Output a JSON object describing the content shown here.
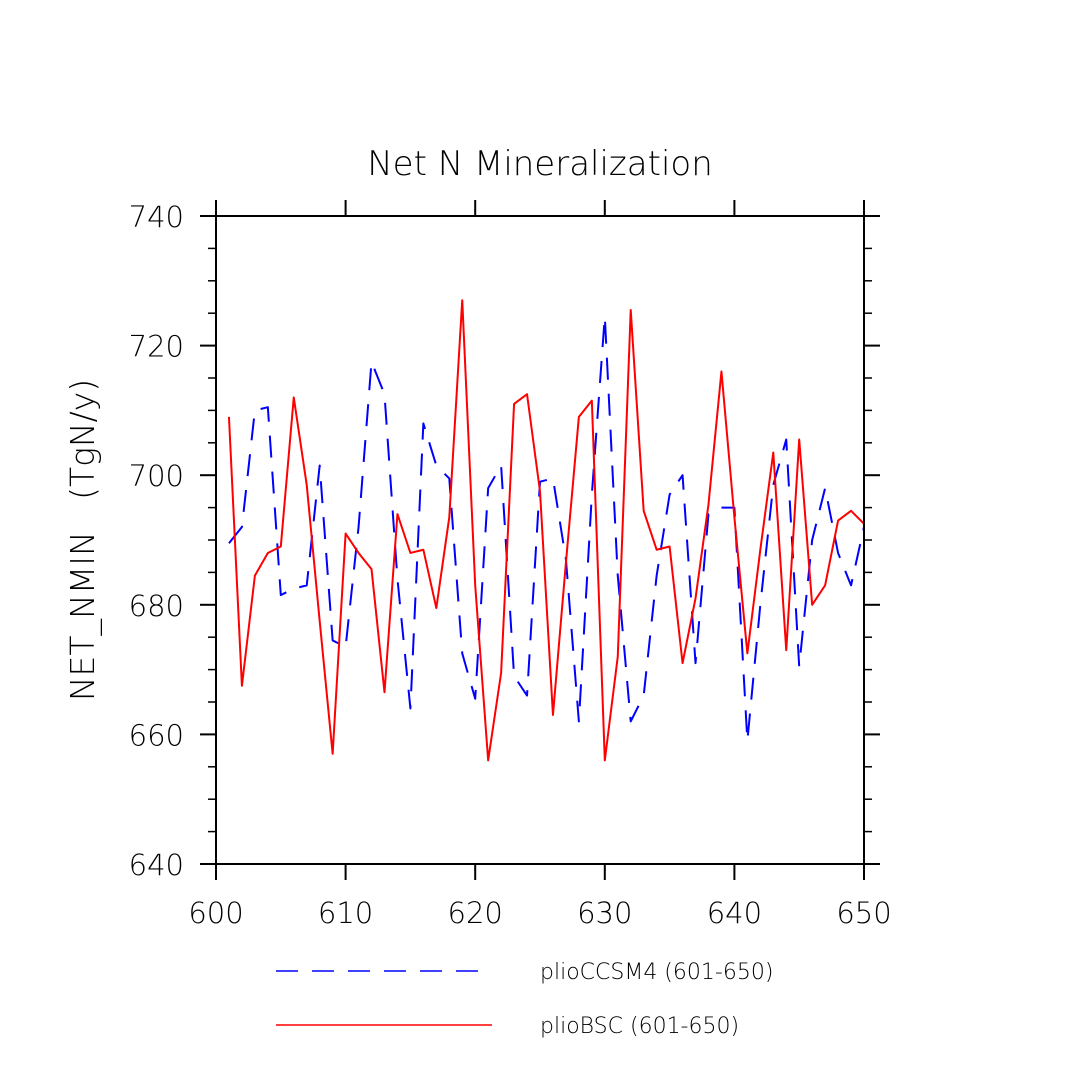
{
  "chart_data": {
    "type": "line",
    "title": "Net N Mineralization",
    "xlabel": "",
    "ylabel": "NET_NMIN   (TgN/y)",
    "xlim": [
      600,
      650
    ],
    "ylim": [
      640,
      740
    ],
    "x_ticks": [
      600,
      610,
      620,
      630,
      640,
      650
    ],
    "y_ticks": [
      640,
      660,
      680,
      700,
      720,
      740
    ],
    "grid": false,
    "legend_position": "bottom",
    "x": [
      601,
      602,
      603,
      604,
      605,
      606,
      607,
      608,
      609,
      610,
      611,
      612,
      613,
      614,
      615,
      616,
      617,
      618,
      619,
      620,
      621,
      622,
      623,
      624,
      625,
      626,
      627,
      628,
      629,
      630,
      631,
      632,
      633,
      634,
      635,
      636,
      637,
      638,
      639,
      640,
      641,
      642,
      643,
      644,
      645,
      646,
      647,
      648,
      649,
      650
    ],
    "series": [
      {
        "name": "plioCCSM4 (601-650)",
        "color": "#0000ff",
        "dash": "dashed",
        "values": [
          689.5,
          692,
          710,
          710.5,
          681.5,
          682.5,
          683,
          701.5,
          674.5,
          673.5,
          692,
          717.5,
          712.5,
          684,
          664,
          708,
          701.5,
          699.5,
          672.5,
          665.5,
          698,
          701.5,
          669,
          666,
          699,
          699.5,
          687,
          662,
          697,
          724.5,
          684.5,
          662,
          666,
          684.5,
          697,
          700,
          671,
          694,
          695,
          695,
          659,
          680,
          698.5,
          705.5,
          670.5,
          690,
          698,
          688,
          683,
          692
        ]
      },
      {
        "name": "plioBSC (601-650)",
        "color": "#ff0000",
        "dash": "solid",
        "values": [
          709,
          667.5,
          684.5,
          688,
          689,
          712,
          698.5,
          677.5,
          657,
          691,
          688,
          685.5,
          666.5,
          694,
          688,
          688.5,
          679.5,
          693.5,
          727,
          683,
          656,
          669.5,
          711,
          712.5,
          697.5,
          663,
          686.5,
          709,
          711.5,
          656,
          672,
          725.5,
          694.5,
          688.5,
          689,
          671,
          681,
          695.5,
          716,
          693.5,
          672.5,
          688.5,
          703.5,
          673,
          705.5,
          680,
          683,
          693,
          694.5,
          692.5
        ]
      }
    ]
  }
}
